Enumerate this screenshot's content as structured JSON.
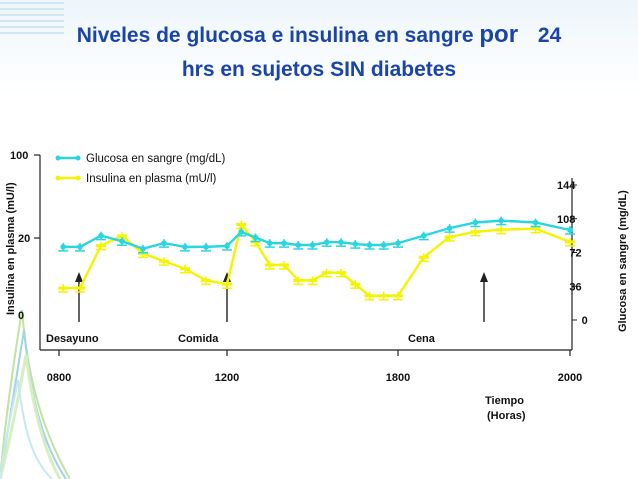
{
  "slide": {
    "title_part1": "Niveles de glucosa e insulina en sangre",
    "title_por": "por",
    "title_num": "24",
    "title_line2": "hrs en sujetos SIN diabetes"
  },
  "colors": {
    "title": "#1a44a8",
    "glucose": "#29d6e0",
    "insulin": "#f4f400"
  },
  "chart_data": {
    "type": "line",
    "title": "",
    "xlabel": "Tiempo",
    "xlabel2": "(Horas)",
    "ylabel_left": "Insulina en plasma (mU/l)",
    "ylabel_right": "Glucosa en sangre (mg/dL)",
    "x_ticks": [
      {
        "label": "0800",
        "hour": 8
      },
      {
        "label": "1200",
        "hour": 12
      },
      {
        "label": "1800",
        "hour": 18
      },
      {
        "label": "2000",
        "hour": 20
      }
    ],
    "left_ticks": [
      {
        "label": "0",
        "value": 0
      },
      {
        "label": "20",
        "value": 20
      },
      {
        "label": "100",
        "value": 100
      }
    ],
    "right_ticks": [
      {
        "label": "0",
        "value": 0
      },
      {
        "label": "36",
        "value": 36
      },
      {
        "label": "72",
        "value": 72
      },
      {
        "label": "108",
        "value": 108
      },
      {
        "label": "144",
        "value": 144
      }
    ],
    "annotations": [
      {
        "label": "Desayuno",
        "hour": 8.6
      },
      {
        "label": "Comida",
        "hour": 12
      },
      {
        "label": "Cena",
        "hour": 18.2
      }
    ],
    "legend_position": "top-left",
    "series": [
      {
        "name": "Glucosa en sangre (mg/dL)",
        "color": "#29d6e0",
        "marker": "circle",
        "x": [
          8.1,
          8.5,
          9.0,
          9.5,
          10.0,
          10.5,
          11.0,
          11.5,
          12.0,
          12.5,
          13.0,
          13.5,
          14.0,
          14.5,
          15.0,
          15.5,
          16.0,
          16.5,
          17.0,
          17.5,
          18.0,
          18.3,
          18.6,
          18.9,
          19.2,
          19.6,
          20.0
        ],
        "values": [
          78,
          78,
          90,
          84,
          76,
          82,
          78,
          78,
          79,
          94,
          88,
          82,
          82,
          80,
          80,
          83,
          83,
          81,
          80,
          80,
          82,
          90,
          98,
          104,
          106,
          104,
          96
        ]
      },
      {
        "name": "Insulina en plasma (mU/l)",
        "color": "#f4f400",
        "marker": "bar",
        "x": [
          8.1,
          8.5,
          9.0,
          9.5,
          10.0,
          10.5,
          11.0,
          11.5,
          12.0,
          12.5,
          13.0,
          13.5,
          14.0,
          14.5,
          15.0,
          15.5,
          16.0,
          16.5,
          17.0,
          17.5,
          18.0,
          18.3,
          18.6,
          18.9,
          19.2,
          19.6,
          20.0
        ],
        "values": [
          7,
          7,
          18,
          22,
          16,
          14,
          12,
          9,
          8,
          33,
          19,
          13,
          13,
          9,
          9,
          11,
          11,
          8,
          5,
          5,
          5,
          15,
          21,
          26,
          28,
          29,
          19
        ]
      }
    ]
  }
}
